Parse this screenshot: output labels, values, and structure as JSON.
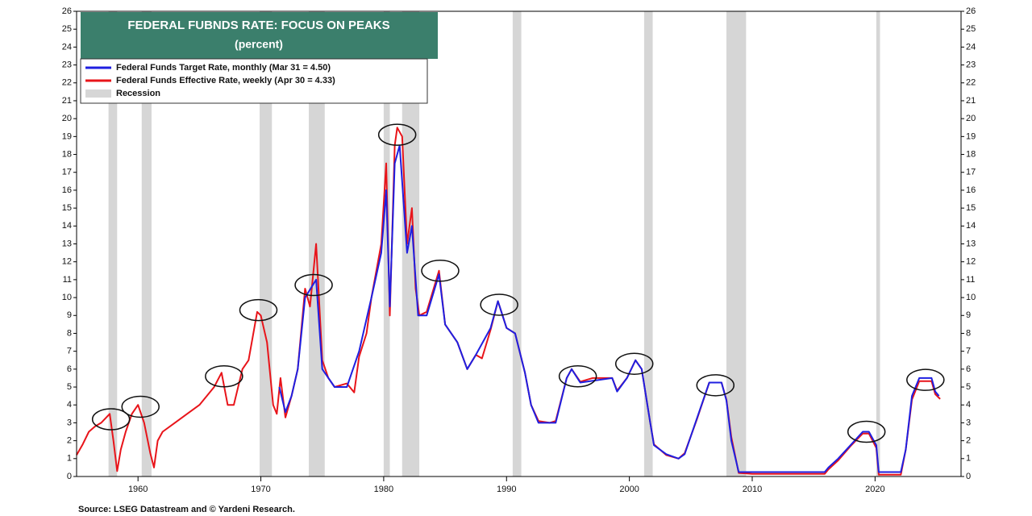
{
  "chart_data": {
    "type": "line",
    "title": "FEDERAL FUBNDS RATE: FOCUS ON PEAKS",
    "subtitle": "(percent)",
    "source": "Source: LSEG Datastream and © Yardeni Research.",
    "xlim": [
      1955,
      2027
    ],
    "xticks": [
      1960,
      1970,
      1980,
      1990,
      2000,
      2010,
      2020
    ],
    "ylim": [
      0,
      26
    ],
    "yticks": [
      0,
      1,
      2,
      3,
      4,
      5,
      6,
      7,
      8,
      9,
      10,
      11,
      12,
      13,
      14,
      15,
      16,
      17,
      18,
      19,
      20,
      21,
      22,
      23,
      24,
      25,
      26
    ],
    "grid": false,
    "recession_label": "Recession",
    "recession_color": "#d6d6d6",
    "recessions": [
      [
        1957.6,
        1958.3
      ],
      [
        1960.3,
        1961.1
      ],
      [
        1969.9,
        1970.9
      ],
      [
        1973.9,
        1975.2
      ],
      [
        1980.0,
        1980.5
      ],
      [
        1981.5,
        1982.9
      ],
      [
        1990.5,
        1991.2
      ],
      [
        2001.2,
        2001.9
      ],
      [
        2007.9,
        2009.5
      ],
      [
        2020.1,
        2020.4
      ]
    ],
    "series": [
      {
        "name": "Federal Funds Effective Rate, weekly (Apr 30 = 4.33)",
        "color": "#e8141a",
        "x": [
          1955,
          1955.5,
          1956,
          1956.5,
          1957,
          1957.7,
          1958.0,
          1958.3,
          1958.6,
          1959,
          1959.5,
          1960,
          1960.5,
          1961,
          1961.3,
          1961.6,
          1962,
          1963,
          1964,
          1965,
          1966.2,
          1966.8,
          1967.3,
          1967.8,
          1968.5,
          1969,
          1969.7,
          1970,
          1970.5,
          1971,
          1971.3,
          1971.6,
          1972,
          1972.5,
          1973,
          1973.6,
          1974.0,
          1974.5,
          1975,
          1975.5,
          1976,
          1977,
          1977.6,
          1978,
          1978.6,
          1979,
          1979.8,
          1980.2,
          1980.5,
          1980.9,
          1981.1,
          1981.5,
          1981.9,
          1982.3,
          1982.6,
          1982.9,
          1983.5,
          1984.5,
          1985,
          1986,
          1986.8,
          1987.5,
          1988,
          1988.7,
          1989.3,
          1990,
          1990.7,
          1991.5,
          1992,
          1992.6,
          1993.5,
          1994,
          1994.9,
          1995.3,
          1996,
          1997,
          1998.6,
          1999,
          1999.8,
          2000.5,
          2001,
          2001.7,
          2002,
          2003,
          2004,
          2004.5,
          2005.5,
          2006.5,
          2007.5,
          2007.9,
          2008.3,
          2008.9,
          2010,
          2012,
          2015.9,
          2016.2,
          2017,
          2018,
          2019,
          2019.5,
          2020.1,
          2020.3,
          2022.1,
          2022.5,
          2023,
          2023.6,
          2024.6,
          2024.9,
          2025.3
        ],
        "values": [
          1.2,
          1.8,
          2.5,
          2.8,
          3.0,
          3.5,
          2.0,
          0.3,
          1.5,
          2.5,
          3.5,
          4.0,
          3.0,
          1.3,
          0.5,
          2.0,
          2.5,
          3.0,
          3.5,
          4.0,
          5.0,
          5.8,
          4.0,
          4.0,
          6.0,
          6.5,
          9.2,
          9.0,
          7.5,
          4.0,
          3.5,
          5.5,
          3.3,
          4.5,
          6.0,
          10.5,
          9.5,
          13.0,
          6.5,
          5.5,
          5.0,
          5.2,
          4.7,
          6.7,
          8.0,
          10.0,
          13.0,
          17.5,
          9.0,
          18.5,
          19.5,
          19.0,
          13.0,
          15.0,
          10.5,
          9.0,
          9.2,
          11.5,
          8.5,
          7.5,
          6.0,
          6.8,
          6.6,
          8.2,
          9.8,
          8.3,
          8.0,
          5.8,
          4.0,
          3.1,
          3.0,
          3.1,
          5.5,
          6.0,
          5.3,
          5.5,
          5.5,
          4.8,
          5.5,
          6.5,
          6.0,
          3.0,
          1.8,
          1.2,
          1.0,
          1.3,
          3.2,
          5.25,
          5.25,
          4.3,
          2.2,
          0.2,
          0.15,
          0.15,
          0.15,
          0.4,
          0.9,
          1.7,
          2.4,
          2.4,
          1.6,
          0.1,
          0.1,
          1.5,
          4.3,
          5.33,
          5.33,
          4.6,
          4.33
        ]
      },
      {
        "name": "Federal Funds Target Rate, monthly (Mar 31 = 4.50)",
        "color": "#1f1fe0",
        "x": [
          1971.5,
          1972,
          1972.5,
          1973,
          1973.6,
          1974.5,
          1975,
          1976,
          1977,
          1978,
          1979,
          1979.8,
          1980.2,
          1980.5,
          1980.9,
          1981.3,
          1981.9,
          1982.3,
          1982.8,
          1983.5,
          1984.5,
          1985,
          1986,
          1986.8,
          1987.5,
          1988.7,
          1989.3,
          1990,
          1990.7,
          1991.5,
          1992,
          1992.6,
          1993.5,
          1994,
          1994.9,
          1995.3,
          1996,
          1998.6,
          1999,
          1999.8,
          2000.5,
          2001,
          2001.7,
          2002,
          2003,
          2004,
          2004.5,
          2005.5,
          2006.5,
          2007.5,
          2007.9,
          2008.3,
          2008.9,
          2015.9,
          2016.2,
          2017,
          2018,
          2019,
          2019.5,
          2020.1,
          2020.3,
          2022.1,
          2022.5,
          2023,
          2023.6,
          2024.6,
          2024.9,
          2025.2
        ],
        "values": [
          5.0,
          3.6,
          4.5,
          6.0,
          10.0,
          11.0,
          6.0,
          5.0,
          5.0,
          7.0,
          10.0,
          12.5,
          16.0,
          9.5,
          17.5,
          18.5,
          12.5,
          14.0,
          9.0,
          9.0,
          11.3,
          8.5,
          7.5,
          6.0,
          6.8,
          8.3,
          9.8,
          8.3,
          8.0,
          5.8,
          4.0,
          3.0,
          3.0,
          3.0,
          5.5,
          6.0,
          5.25,
          5.5,
          4.75,
          5.5,
          6.5,
          6.0,
          3.0,
          1.75,
          1.25,
          1.0,
          1.25,
          3.25,
          5.25,
          5.25,
          4.25,
          2.0,
          0.25,
          0.25,
          0.5,
          1.0,
          1.75,
          2.5,
          2.5,
          1.75,
          0.25,
          0.25,
          1.5,
          4.5,
          5.5,
          5.5,
          4.75,
          4.5
        ]
      }
    ],
    "peaks_x": [
      1957.8,
      1960.2,
      1967.0,
      1969.8,
      1974.3,
      1981.1,
      1984.6,
      1989.4,
      1995.8,
      2000.4,
      2007.0,
      2019.3,
      2024.1
    ],
    "peaks_y": [
      3.2,
      3.9,
      5.6,
      9.3,
      10.7,
      19.1,
      11.5,
      9.6,
      5.6,
      6.3,
      5.1,
      2.5,
      5.4
    ]
  }
}
